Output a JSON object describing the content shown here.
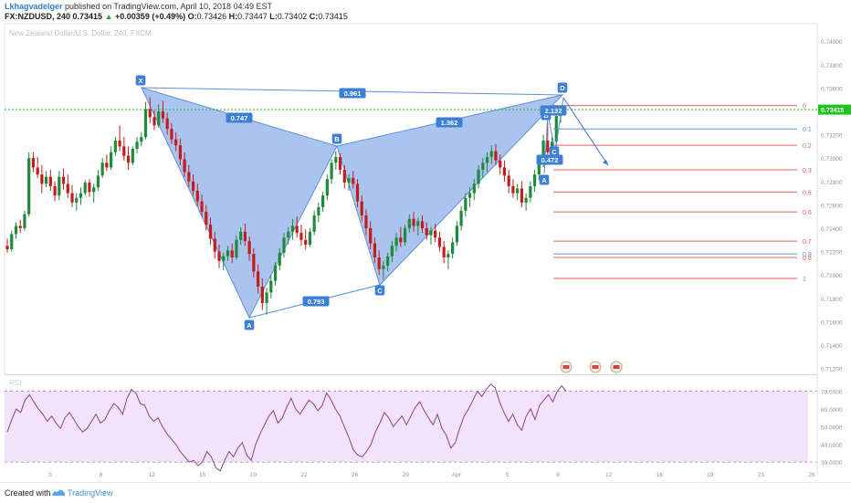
{
  "header": {
    "user": "Lkhagvadelger",
    "published_text": " published on TradingView.com, April 10, 2018 04:49 EST",
    "symbol": "FX:NZDUSD, 240",
    "price": "0.73415",
    "change": "+0.00359 (+0.49%)",
    "open_label": "O:",
    "open": "0.73426",
    "high_label": "H:",
    "high": "0.73447",
    "low_label": "L:",
    "low": "0.73402",
    "close_label": "C:",
    "close": "0.73415"
  },
  "watermark": "New Zealand Dollar/U.S. Dollar, 240, FXCM",
  "footer": {
    "created": "Created with",
    "brand": "TradingView"
  },
  "colors": {
    "up": "#1f8a3a",
    "down": "#c41c1c",
    "pattern_fill": "#8fb0ea",
    "pattern_line": "#5b8fdc",
    "fib_red": "#e85c5c",
    "fib_blue": "#5b8fdc",
    "price_green": "#21c321",
    "rsi": "#8e3f8e",
    "rsi_band": "#f2e3fa"
  },
  "chart_data": {
    "type": "candlestick",
    "symbol": "NZDUSD",
    "timeframe": "240",
    "price_axis": {
      "min": 0.7115,
      "max": 0.7415,
      "ticks": [
        "0.74000",
        "0.73800",
        "0.73600",
        "0.73400",
        "0.73200",
        "0.73000",
        "0.72800",
        "0.72600",
        "0.72400",
        "0.72200",
        "0.72000",
        "0.71800",
        "0.71600",
        "0.71400",
        "0.71200"
      ]
    },
    "last_price": "0.73415",
    "x_ticks": [
      "5",
      "8",
      "12",
      "15",
      "19",
      "22",
      "26",
      "29",
      "Apr",
      "5",
      "9",
      "12",
      "16",
      "19",
      "23",
      "26"
    ],
    "harmonic_pattern": {
      "type": "bearish bat",
      "points": [
        {
          "label": "X",
          "price": 0.73555
        },
        {
          "label": "A",
          "price": 0.71661
        },
        {
          "label": "B",
          "price": 0.7306
        },
        {
          "label": "C",
          "price": 0.71901
        },
        {
          "label": "D",
          "price": 0.7345
        }
      ],
      "ratios": [
        {
          "label": "0.747",
          "between": "XA-AB"
        },
        {
          "label": "0.793",
          "between": "AB-BC"
        },
        {
          "label": "1.362",
          "between": "BC-CD"
        },
        {
          "label": "0.961",
          "between": "XA-XD"
        }
      ]
    },
    "small_pattern": {
      "points": [
        {
          "label": "A",
          "price": 0.7279
        },
        {
          "label": "B",
          "price": 0.7338
        },
        {
          "label": "C",
          "price": 0.7295
        }
      ],
      "ratios": [
        {
          "label": "2.132"
        },
        {
          "label": "0.472"
        }
      ]
    },
    "fibonacci_levels": [
      {
        "label": "0",
        "price": 0.7345,
        "color": "red"
      },
      {
        "label": "0.1",
        "price": 0.7325,
        "color": "blue"
      },
      {
        "label": "0.2",
        "price": 0.7311,
        "color": "red"
      },
      {
        "label": "0.3",
        "price": 0.729,
        "color": "red"
      },
      {
        "label": "0.5",
        "price": 0.7271,
        "color": "red"
      },
      {
        "label": "0.6",
        "price": 0.7254,
        "color": "red"
      },
      {
        "label": "0.7",
        "price": 0.7229,
        "color": "red"
      },
      {
        "label": "0.8",
        "price": 0.7218,
        "color": "blue"
      },
      {
        "label": "0.8",
        "price": 0.7215,
        "color": "red"
      },
      {
        "label": "1",
        "price": 0.7197,
        "color": "red"
      }
    ],
    "candles": [
      [
        0.7225,
        0.7231,
        0.7219,
        0.7222
      ],
      [
        0.7222,
        0.7238,
        0.722,
        0.7235
      ],
      [
        0.7235,
        0.7245,
        0.7231,
        0.7242
      ],
      [
        0.7242,
        0.7247,
        0.7236,
        0.724
      ],
      [
        0.724,
        0.7255,
        0.7238,
        0.7252
      ],
      [
        0.7252,
        0.7305,
        0.725,
        0.73
      ],
      [
        0.73,
        0.7305,
        0.7288,
        0.7292
      ],
      [
        0.7292,
        0.7301,
        0.7283,
        0.7286
      ],
      [
        0.7286,
        0.7294,
        0.727,
        0.7278
      ],
      [
        0.7278,
        0.7289,
        0.7275,
        0.7284
      ],
      [
        0.7284,
        0.729,
        0.7272,
        0.7276
      ],
      [
        0.7276,
        0.728,
        0.7263,
        0.7268
      ],
      [
        0.7268,
        0.7289,
        0.7264,
        0.7284
      ],
      [
        0.7284,
        0.7291,
        0.7273,
        0.7278
      ],
      [
        0.7278,
        0.7286,
        0.7266,
        0.727
      ],
      [
        0.727,
        0.7277,
        0.7258,
        0.7262
      ],
      [
        0.7262,
        0.727,
        0.7255,
        0.7266
      ],
      [
        0.7266,
        0.7275,
        0.726,
        0.727
      ],
      [
        0.727,
        0.7281,
        0.7268,
        0.7279
      ],
      [
        0.7279,
        0.7282,
        0.7267,
        0.7271
      ],
      [
        0.7271,
        0.7278,
        0.7262,
        0.7275
      ],
      [
        0.7275,
        0.729,
        0.7272,
        0.7285
      ],
      [
        0.7285,
        0.73,
        0.7283,
        0.7296
      ],
      [
        0.7296,
        0.7303,
        0.7289,
        0.7292
      ],
      [
        0.7292,
        0.731,
        0.729,
        0.7305
      ],
      [
        0.7305,
        0.7318,
        0.7302,
        0.7315
      ],
      [
        0.7315,
        0.7328,
        0.7306,
        0.731
      ],
      [
        0.731,
        0.7318,
        0.7298,
        0.7302
      ],
      [
        0.7302,
        0.731,
        0.729,
        0.7296
      ],
      [
        0.7296,
        0.731,
        0.7294,
        0.7308
      ],
      [
        0.7308,
        0.7318,
        0.7304,
        0.7314
      ],
      [
        0.7314,
        0.7322,
        0.731,
        0.7318
      ],
      [
        0.7318,
        0.7348,
        0.7316,
        0.7342
      ],
      [
        0.7342,
        0.7352,
        0.733,
        0.7335
      ],
      [
        0.7335,
        0.7341,
        0.7324,
        0.7328
      ],
      [
        0.7328,
        0.7346,
        0.7326,
        0.734
      ],
      [
        0.734,
        0.7349,
        0.733,
        0.7334
      ],
      [
        0.7334,
        0.7339,
        0.732,
        0.7325
      ],
      [
        0.7325,
        0.733,
        0.7312,
        0.7316
      ],
      [
        0.7316,
        0.7322,
        0.7306,
        0.7311
      ],
      [
        0.7311,
        0.7317,
        0.7294,
        0.7299
      ],
      [
        0.7299,
        0.7305,
        0.7284,
        0.7288
      ],
      [
        0.7288,
        0.7294,
        0.7275,
        0.728
      ],
      [
        0.728,
        0.7286,
        0.7268,
        0.7272
      ],
      [
        0.7272,
        0.7278,
        0.7259,
        0.7263
      ],
      [
        0.7263,
        0.7269,
        0.725,
        0.7254
      ],
      [
        0.7254,
        0.726,
        0.7238,
        0.7243
      ],
      [
        0.7243,
        0.7249,
        0.7226,
        0.7231
      ],
      [
        0.7231,
        0.7237,
        0.7214,
        0.722
      ],
      [
        0.722,
        0.7226,
        0.7206,
        0.7212
      ],
      [
        0.7212,
        0.7219,
        0.7204,
        0.7216
      ],
      [
        0.7216,
        0.7225,
        0.7212,
        0.7221
      ],
      [
        0.7221,
        0.7227,
        0.721,
        0.7215
      ],
      [
        0.7215,
        0.7234,
        0.7213,
        0.723
      ],
      [
        0.723,
        0.7241,
        0.7226,
        0.7237
      ],
      [
        0.7237,
        0.7244,
        0.7225,
        0.7229
      ],
      [
        0.7229,
        0.7233,
        0.7212,
        0.7218
      ],
      [
        0.7218,
        0.7223,
        0.7198,
        0.7203
      ],
      [
        0.7203,
        0.7209,
        0.7184,
        0.719
      ],
      [
        0.719,
        0.7197,
        0.717,
        0.7176
      ],
      [
        0.7176,
        0.7189,
        0.7166,
        0.7185
      ],
      [
        0.7185,
        0.72,
        0.718,
        0.7195
      ],
      [
        0.7195,
        0.7211,
        0.7191,
        0.7208
      ],
      [
        0.7208,
        0.7223,
        0.7204,
        0.7219
      ],
      [
        0.7219,
        0.7236,
        0.7215,
        0.7232
      ],
      [
        0.7232,
        0.7241,
        0.7226,
        0.7237
      ],
      [
        0.7237,
        0.7248,
        0.723,
        0.7242
      ],
      [
        0.7242,
        0.725,
        0.7232,
        0.7236
      ],
      [
        0.7236,
        0.7243,
        0.7225,
        0.723
      ],
      [
        0.723,
        0.7239,
        0.7222,
        0.7226
      ],
      [
        0.7226,
        0.724,
        0.7224,
        0.7237
      ],
      [
        0.7237,
        0.7255,
        0.7234,
        0.7251
      ],
      [
        0.7251,
        0.7262,
        0.7245,
        0.7258
      ],
      [
        0.7258,
        0.7271,
        0.7254,
        0.7268
      ],
      [
        0.7268,
        0.7286,
        0.7264,
        0.7282
      ],
      [
        0.7282,
        0.7299,
        0.7278,
        0.7296
      ],
      [
        0.7296,
        0.7306,
        0.729,
        0.7301
      ],
      [
        0.7301,
        0.7304,
        0.7286,
        0.729
      ],
      [
        0.729,
        0.7294,
        0.7274,
        0.7279
      ],
      [
        0.7279,
        0.7286,
        0.7272,
        0.7283
      ],
      [
        0.7283,
        0.7289,
        0.7274,
        0.7278
      ],
      [
        0.7278,
        0.7282,
        0.7258,
        0.7263
      ],
      [
        0.7263,
        0.7268,
        0.7246,
        0.7251
      ],
      [
        0.7251,
        0.7256,
        0.7234,
        0.724
      ],
      [
        0.724,
        0.7246,
        0.7222,
        0.7227
      ],
      [
        0.7227,
        0.7232,
        0.721,
        0.7215
      ],
      [
        0.7215,
        0.7221,
        0.72,
        0.7205
      ],
      [
        0.7205,
        0.7212,
        0.7196,
        0.7208
      ],
      [
        0.7208,
        0.7219,
        0.7203,
        0.7216
      ],
      [
        0.7216,
        0.7229,
        0.7211,
        0.7225
      ],
      [
        0.7225,
        0.7236,
        0.722,
        0.7232
      ],
      [
        0.7232,
        0.7241,
        0.7224,
        0.7228
      ],
      [
        0.7228,
        0.7243,
        0.7225,
        0.724
      ],
      [
        0.724,
        0.7252,
        0.7236,
        0.7248
      ],
      [
        0.7248,
        0.7254,
        0.7237,
        0.7242
      ],
      [
        0.7242,
        0.7249,
        0.7234,
        0.7246
      ],
      [
        0.7246,
        0.7251,
        0.7236,
        0.724
      ],
      [
        0.724,
        0.7245,
        0.723,
        0.7234
      ],
      [
        0.7234,
        0.7241,
        0.7226,
        0.7238
      ],
      [
        0.7238,
        0.7244,
        0.7228,
        0.7232
      ],
      [
        0.7232,
        0.7237,
        0.722,
        0.7224
      ],
      [
        0.7224,
        0.7229,
        0.721,
        0.7215
      ],
      [
        0.7215,
        0.7221,
        0.7205,
        0.7218
      ],
      [
        0.7218,
        0.7232,
        0.7214,
        0.7228
      ],
      [
        0.7228,
        0.7246,
        0.7225,
        0.7242
      ],
      [
        0.7242,
        0.7259,
        0.7238,
        0.7255
      ],
      [
        0.7255,
        0.727,
        0.725,
        0.7266
      ],
      [
        0.7266,
        0.7275,
        0.7258,
        0.727
      ],
      [
        0.727,
        0.7282,
        0.7264,
        0.7278
      ],
      [
        0.7278,
        0.7294,
        0.7274,
        0.729
      ],
      [
        0.729,
        0.73,
        0.7283,
        0.7296
      ],
      [
        0.7296,
        0.7305,
        0.7288,
        0.7301
      ],
      [
        0.7301,
        0.7311,
        0.7295,
        0.7306
      ],
      [
        0.7306,
        0.7312,
        0.7294,
        0.7298
      ],
      [
        0.7298,
        0.7303,
        0.7286,
        0.7292
      ],
      [
        0.7292,
        0.7298,
        0.728,
        0.7285
      ],
      [
        0.7285,
        0.729,
        0.727,
        0.7276
      ],
      [
        0.7276,
        0.7282,
        0.7266,
        0.727
      ],
      [
        0.727,
        0.7278,
        0.7264,
        0.7274
      ],
      [
        0.7274,
        0.728,
        0.7258,
        0.7262
      ],
      [
        0.7262,
        0.727,
        0.7255,
        0.7266
      ],
      [
        0.7266,
        0.728,
        0.7262,
        0.7276
      ],
      [
        0.7276,
        0.729,
        0.7271,
        0.7286
      ],
      [
        0.7286,
        0.7302,
        0.7281,
        0.7297
      ],
      [
        0.7297,
        0.732,
        0.7292,
        0.7315
      ],
      [
        0.7315,
        0.733,
        0.73,
        0.7305
      ],
      [
        0.7305,
        0.7318,
        0.7302,
        0.7314
      ],
      [
        0.7314,
        0.734,
        0.731,
        0.7336
      ],
      [
        0.7336,
        0.7345,
        0.733,
        0.7341
      ]
    ],
    "rsi": {
      "name": "RSI",
      "levels": [
        "70.0000",
        "50.0000",
        "30.0000"
      ],
      "ticks": [
        "70.0000",
        "60.0000",
        "50.0000",
        "40.0000",
        "30.0000"
      ],
      "values": [
        47,
        54,
        60,
        58,
        65,
        68,
        64,
        60,
        57,
        53,
        56,
        52,
        49,
        55,
        58,
        54,
        50,
        47,
        49,
        53,
        57,
        52,
        54,
        59,
        63,
        61,
        57,
        66,
        71,
        69,
        63,
        62,
        56,
        53,
        55,
        50,
        46,
        43,
        40,
        36,
        33,
        30,
        31,
        28,
        30,
        36,
        33,
        27,
        25,
        31,
        36,
        33,
        38,
        41,
        34,
        31,
        40,
        46,
        51,
        56,
        59,
        52,
        55,
        61,
        66,
        60,
        57,
        61,
        65,
        63,
        59,
        62,
        69,
        65,
        60,
        56,
        50,
        44,
        37,
        34,
        33,
        36,
        40,
        47,
        52,
        58,
        55,
        50,
        53,
        56,
        51,
        56,
        61,
        64,
        59,
        55,
        51,
        57,
        49,
        45,
        38,
        41,
        49,
        56,
        60,
        65,
        70,
        67,
        71,
        74,
        72,
        64,
        58,
        53,
        57,
        51,
        48,
        56,
        60,
        54,
        62,
        65,
        68,
        64,
        70,
        73,
        70
      ]
    }
  }
}
